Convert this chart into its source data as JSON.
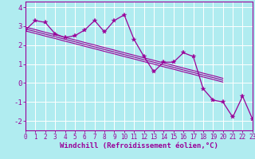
{
  "xlabel": "Windchill (Refroidissement éolien,°C)",
  "background_color": "#b0ecf0",
  "grid_color": "#ffffff",
  "line_color": "#990099",
  "x_values": [
    0,
    1,
    2,
    3,
    4,
    5,
    6,
    7,
    8,
    9,
    10,
    11,
    12,
    13,
    14,
    15,
    16,
    17,
    18,
    19,
    20,
    21,
    22,
    23
  ],
  "y_main": [
    2.8,
    3.3,
    3.2,
    2.6,
    2.4,
    2.5,
    2.8,
    3.3,
    2.7,
    3.3,
    3.6,
    2.3,
    1.4,
    0.6,
    1.1,
    1.1,
    1.6,
    1.4,
    -0.3,
    -0.9,
    -1.0,
    -1.8,
    -0.7,
    -1.9
  ],
  "y_reg1": [
    2.85,
    2.72,
    2.58,
    2.45,
    2.31,
    2.18,
    2.04,
    1.91,
    1.77,
    1.64,
    1.5,
    1.37,
    1.23,
    1.1,
    0.96,
    0.83,
    0.69,
    0.56,
    0.42,
    0.29,
    0.15
  ],
  "y_reg2": [
    2.95,
    2.82,
    2.68,
    2.55,
    2.41,
    2.28,
    2.14,
    2.01,
    1.87,
    1.74,
    1.6,
    1.47,
    1.33,
    1.2,
    1.06,
    0.93,
    0.79,
    0.66,
    0.52,
    0.39,
    0.25
  ],
  "y_reg3": [
    2.75,
    2.62,
    2.48,
    2.35,
    2.21,
    2.08,
    1.94,
    1.81,
    1.67,
    1.54,
    1.4,
    1.27,
    1.13,
    1.0,
    0.86,
    0.73,
    0.59,
    0.46,
    0.32,
    0.19,
    0.05
  ],
  "x_reg": [
    0,
    1,
    2,
    3,
    4,
    5,
    6,
    7,
    8,
    9,
    10,
    11,
    12,
    13,
    14,
    15,
    16,
    17,
    18,
    19,
    20
  ],
  "ylim": [
    -2.5,
    4.3
  ],
  "xlim": [
    0,
    23
  ],
  "yticks": [
    -2,
    -1,
    0,
    1,
    2,
    3,
    4
  ],
  "xticks": [
    0,
    1,
    2,
    3,
    4,
    5,
    6,
    7,
    8,
    9,
    10,
    11,
    12,
    13,
    14,
    15,
    16,
    17,
    18,
    19,
    20,
    21,
    22,
    23
  ],
  "xlabel_fontsize": 6.5,
  "tick_fontsize": 6.5
}
